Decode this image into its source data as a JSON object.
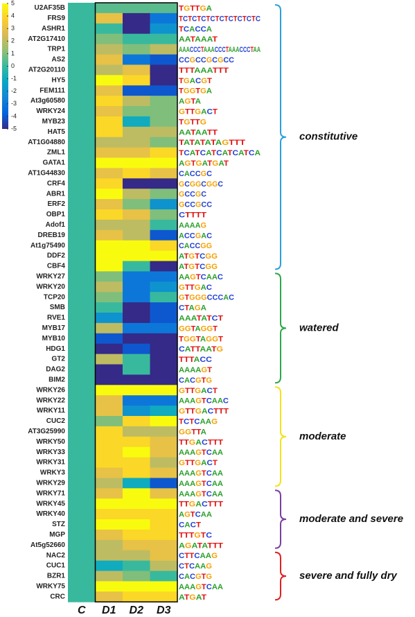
{
  "chart_data": {
    "type": "heatmap",
    "groups": [
      {
        "label": "constitutive",
        "color": "#2aa0dc",
        "categories": [
          "U2AF35B",
          "FRS9",
          "ASHR1",
          "AT2G17410",
          "TRP1",
          "AS2",
          "AT2G20110",
          "HY5",
          "FEM111",
          "At3g60580",
          "WRKY24",
          "MYB23",
          "HAT5",
          "AT1G04880",
          "ZML1",
          "GATA1",
          "AT1G44830",
          "CRF4",
          "ABR1",
          "ERF2",
          "OBP1",
          "Adof1",
          "DREB19",
          "At1g75490",
          "DDF2",
          "CBF4"
        ]
      },
      {
        "label": "watered",
        "color": "#2ba84a",
        "categories": [
          "WRKY27",
          "WRKY20",
          "TCP20",
          "SMB",
          "RVE1",
          "MYB17",
          "MYB10",
          "HDG1",
          "GT2",
          "DAG2",
          "BIM2"
        ]
      },
      {
        "label": "moderate",
        "color": "#f2e21b",
        "categories": [
          "WRKY26",
          "WRKY22",
          "WRKY11",
          "CUC2",
          "AT3G25990",
          "WRKY50",
          "WRKY33",
          "WRKY31",
          "WRKY3",
          "WRKY29"
        ]
      },
      {
        "label": "moderate and severe",
        "color": "#7b3f9e",
        "categories": [
          "WRKY71",
          "WRKY45",
          "WRKY40",
          "STZ",
          "MGP",
          "At5g52660"
        ]
      },
      {
        "label": "severe and fully dry",
        "color": "#e02020",
        "categories": [
          "NAC2",
          "CUC1",
          "BZR1",
          "WRKY75",
          "CRC"
        ]
      }
    ],
    "motifs": [
      "TGTTGA",
      "TCTCTCTCTCTCTCTCTC",
      "TCACCA",
      "AATAAAT",
      "AAACCCTAAACCCTAAACCCTAA",
      "CCGCCGCGCC",
      "TTTAAATTT",
      "TGACGT",
      "TGGTGA",
      "AGTA",
      "GTTGACT",
      "TGTTG",
      "AATAATT",
      "TATATATAGTTT",
      "TCATCATCATCATCA",
      "AGTGATGAT",
      "CACCGC",
      "GCGGCGGC",
      "GCCGC",
      "GCCGCC",
      "CTTTT",
      "AAAAG",
      "ACCGAC",
      "CACCGG",
      "ATGTCGG",
      "ATGTCGG",
      "AAGTCAAC",
      "GTTGAC",
      "GTGGGCCCAC",
      "CTAGA",
      "AAATATCT",
      "GGTAGGT",
      "TGGTAGGT",
      "CATTAATG",
      "TTTACC",
      "AAAAGT",
      "CACGTG",
      "GTTGACT",
      "AAAGTCAAC",
      "GTTGACTTT",
      "TCTCAAG",
      "GGTTA",
      "TTGACTTT",
      "AAAGTCAA",
      "GTTGACT",
      "AAAGTCAA",
      "AAAGTCAA",
      "AAAGTCAA",
      "TTGACTTT",
      "AGTCAA",
      "CACT",
      "TTTGTC",
      "AGATATTT",
      "CTTCAAG",
      "CTCAAG",
      "CACGTG",
      "AAAGTCAA",
      "ATGAT"
    ],
    "motif_colors": {
      "A": "#2ca02c",
      "C": "#1f3fd6",
      "G": "#f5a000",
      "T": "#e01010"
    },
    "series": [
      {
        "name": "C",
        "values": [
          0,
          0,
          0,
          0,
          0,
          0,
          0,
          0,
          0,
          0,
          0,
          0,
          0,
          0,
          0,
          0,
          0,
          0,
          0,
          0,
          0,
          0,
          0,
          0,
          0,
          0,
          0,
          0,
          0,
          0,
          0,
          0,
          0,
          0,
          0,
          0,
          0,
          0,
          0,
          0,
          0,
          0,
          0,
          0,
          0,
          0,
          0,
          0,
          0,
          0,
          0,
          0,
          0,
          0,
          0,
          0,
          0,
          0
        ]
      },
      {
        "name": "D1",
        "values": [
          0.5,
          3,
          0,
          1,
          2,
          3,
          2,
          5,
          3,
          4,
          3,
          4,
          4,
          2,
          3,
          5,
          3,
          4,
          5,
          3,
          4,
          2,
          3,
          5,
          5,
          5,
          1,
          2,
          1,
          0,
          -2,
          2,
          -4,
          -5,
          2,
          -5,
          -5,
          5,
          3,
          3,
          1,
          4,
          4,
          4,
          4,
          3,
          2,
          3,
          5,
          4,
          5,
          3,
          2,
          2,
          -1,
          2,
          5,
          3
        ]
      },
      {
        "name": "D2",
        "values": [
          0.5,
          -5,
          -5,
          0,
          1,
          -3,
          3,
          4,
          -4,
          2,
          1,
          -1,
          2,
          2,
          3,
          5,
          4,
          -5,
          2,
          1,
          3,
          2,
          2,
          5,
          5,
          0,
          -3,
          -3,
          -3,
          -5,
          -5,
          -3,
          -5,
          -4,
          0,
          0,
          -5,
          5,
          -3,
          -2,
          4,
          2,
          4,
          5,
          4,
          4,
          -1,
          5,
          5,
          4,
          5,
          4,
          3,
          2,
          0,
          1,
          5,
          4
        ]
      },
      {
        "name": "D3",
        "values": [
          0.5,
          -3,
          -2,
          0,
          2,
          -4,
          -5,
          -5,
          -4,
          1,
          1,
          1,
          2,
          1,
          4,
          5,
          3,
          -5,
          1,
          -2,
          1,
          0,
          -4,
          4,
          5,
          -5,
          -3,
          -2,
          0,
          -4,
          -4,
          -3,
          -5,
          -5,
          -5,
          -5,
          -5,
          5,
          -3,
          -1,
          5,
          2,
          3,
          3,
          2,
          3,
          -4,
          3,
          5,
          4,
          4,
          4,
          3,
          3,
          2,
          0,
          5,
          4
        ]
      }
    ],
    "colormap": [
      "#352a87",
      "#0363e1",
      "#1485d4",
      "#06a7c6",
      "#38b99e",
      "#92bf73",
      "#d9ba56",
      "#fcce2e",
      "#f9fb0e"
    ],
    "ylim": [
      -5,
      5
    ],
    "yticks": [
      5,
      4,
      3,
      2,
      1,
      0,
      -1,
      -2,
      -3,
      -4,
      -5
    ]
  }
}
